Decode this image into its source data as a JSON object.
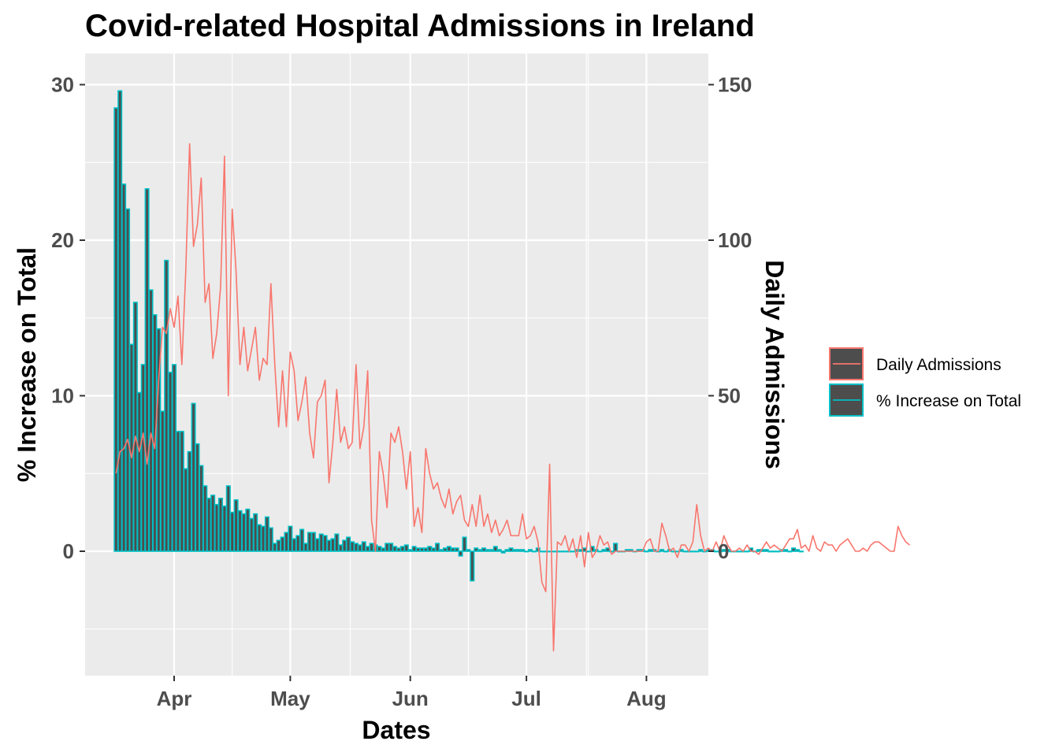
{
  "chart_data": {
    "type": "bar",
    "title": "Covid-related Hospital Admissions in Ireland",
    "xlabel": "Dates",
    "ylabel": "% Increase on Total",
    "y2label": "Daily Admissions",
    "x_ticks": [
      "Apr",
      "May",
      "Jun",
      "Jul",
      "Aug"
    ],
    "x_tick_dates": [
      "2020-04-01",
      "2020-05-01",
      "2020-06-01",
      "2020-07-01",
      "2020-08-01"
    ],
    "x_range": [
      "2020-03-09",
      "2020-08-17"
    ],
    "y_ticks": [
      "0",
      "10",
      "20",
      "30"
    ],
    "y_tick_values": [
      0,
      10,
      20,
      30
    ],
    "ylim": [
      -8,
      32
    ],
    "y2_ticks": [
      "0",
      "50",
      "100",
      "150"
    ],
    "y2_tick_values": [
      0,
      50,
      100,
      150
    ],
    "y2lim": [
      -40,
      160
    ],
    "start_date": "2020-03-17",
    "grid": true,
    "legend": {
      "position": "right",
      "entries": [
        {
          "label": "Daily Admissions",
          "color": "#f8766d"
        },
        {
          "label": "% Increase on Total",
          "color": "#00bfc4"
        }
      ]
    },
    "colors": {
      "panel": "#ebebeb",
      "grid": "#ffffff",
      "bar_fill": "#4d4d4d",
      "bar_outline": "#00bfc4",
      "line": "#f8766d"
    },
    "series": [
      {
        "name": "% Increase on Total",
        "type": "bar",
        "axis": "left",
        "values": [
          28.5,
          29.6,
          23.6,
          22.0,
          13.3,
          16.0,
          10.2,
          12.0,
          23.3,
          16.8,
          15.2,
          14.3,
          9.0,
          18.7,
          11.5,
          12.0,
          7.7,
          7.7,
          5.3,
          6.4,
          9.5,
          6.9,
          5.5,
          4.2,
          3.4,
          3.6,
          3.0,
          3.4,
          2.9,
          4.2,
          2.5,
          3.3,
          2.6,
          2.4,
          2.7,
          2.1,
          2.4,
          1.7,
          1.6,
          2.2,
          1.5,
          0.5,
          0.7,
          0.9,
          1.2,
          1.6,
          0.8,
          1.0,
          1.4,
          0.5,
          1.2,
          1.2,
          0.8,
          1.1,
          1.0,
          0.7,
          0.8,
          1.1,
          0.4,
          0.7,
          0.9,
          0.6,
          0.5,
          0.4,
          0.6,
          0.3,
          0.5,
          0.4,
          0.3,
          0.2,
          0.5,
          0.5,
          0.3,
          0.2,
          0.3,
          0.4,
          0.1,
          0.3,
          0.2,
          0.2,
          0.2,
          0.3,
          0.2,
          0.5,
          0.1,
          0.2,
          0.3,
          0.2,
          0.2,
          -0.3,
          0.9,
          0.1,
          -1.9,
          0.2,
          0.1,
          0.2,
          0.1,
          0.1,
          0.3,
          0.1,
          -0.1,
          0.1,
          0.2,
          0.1,
          0.1,
          0.1,
          0.0,
          0.1,
          0.0,
          0.2,
          0.0,
          0.0,
          0.0,
          0.0,
          0.0,
          0.0,
          0.0,
          0.0,
          0.0,
          0.1,
          0.1,
          0.2,
          0.0,
          0.3,
          0.1,
          0.0,
          0.1,
          0.2,
          0.0,
          0.5,
          0.0,
          0.0,
          0.1,
          0.1,
          0.0,
          0.1,
          0.1,
          0.0,
          0.1,
          0.1,
          0.0,
          0.1,
          0.0,
          0.1,
          0.0,
          0.0,
          0.1,
          0.0,
          0.0,
          0.0,
          0.0,
          0.1,
          0.0,
          0.1,
          0.1,
          0.0,
          0.0,
          0.1,
          0.1,
          0.0,
          0.0,
          0.0,
          0.0,
          0.0,
          0.2,
          0.0,
          0.1,
          0.1,
          0.1,
          0.0,
          0.0,
          0.0,
          0.1,
          0.1,
          0.0,
          0.2,
          0.1,
          0.0
        ]
      },
      {
        "name": "Daily Admissions",
        "type": "line",
        "axis": "right",
        "values": [
          25,
          32,
          33,
          36,
          30,
          37,
          32,
          38,
          28,
          38,
          33,
          55,
          72,
          70,
          78,
          72,
          82,
          60,
          90,
          131,
          98,
          105,
          120,
          80,
          86,
          62,
          70,
          85,
          127,
          50,
          110,
          90,
          60,
          72,
          58,
          65,
          72,
          55,
          62,
          60,
          86,
          60,
          40,
          58,
          40,
          64,
          58,
          42,
          48,
          56,
          38,
          30,
          48,
          50,
          55,
          22,
          35,
          52,
          35,
          40,
          33,
          35,
          60,
          33,
          40,
          58,
          10,
          0,
          32,
          25,
          14,
          38,
          35,
          40,
          32,
          20,
          32,
          8,
          14,
          6,
          33,
          25,
          20,
          22,
          17,
          14,
          20,
          12,
          16,
          18,
          10,
          8,
          15,
          8,
          18,
          8,
          12,
          6,
          10,
          5,
          7,
          10,
          5,
          5,
          5,
          12,
          4,
          5,
          8,
          3,
          -10,
          -13,
          28,
          -32,
          3,
          2,
          5,
          0,
          4,
          -2,
          5,
          -5,
          6,
          -2,
          0,
          5,
          2,
          3,
          -1,
          0,
          0,
          0,
          0,
          0,
          0,
          0,
          0,
          3,
          4,
          0,
          0,
          9,
          5,
          0,
          1,
          -2,
          2,
          2,
          0,
          3,
          15,
          5,
          0,
          1,
          0,
          3,
          0,
          5,
          2,
          0,
          0,
          1,
          0,
          2,
          0,
          0,
          -1,
          1,
          3,
          1,
          2,
          1,
          0,
          2,
          4,
          4,
          7,
          1,
          2,
          0,
          5,
          1,
          0,
          3,
          2,
          2,
          0,
          2,
          3,
          4,
          2,
          0,
          0,
          1,
          0,
          2,
          3,
          3,
          2,
          1,
          0,
          0,
          8,
          5,
          3,
          2
        ]
      }
    ]
  }
}
